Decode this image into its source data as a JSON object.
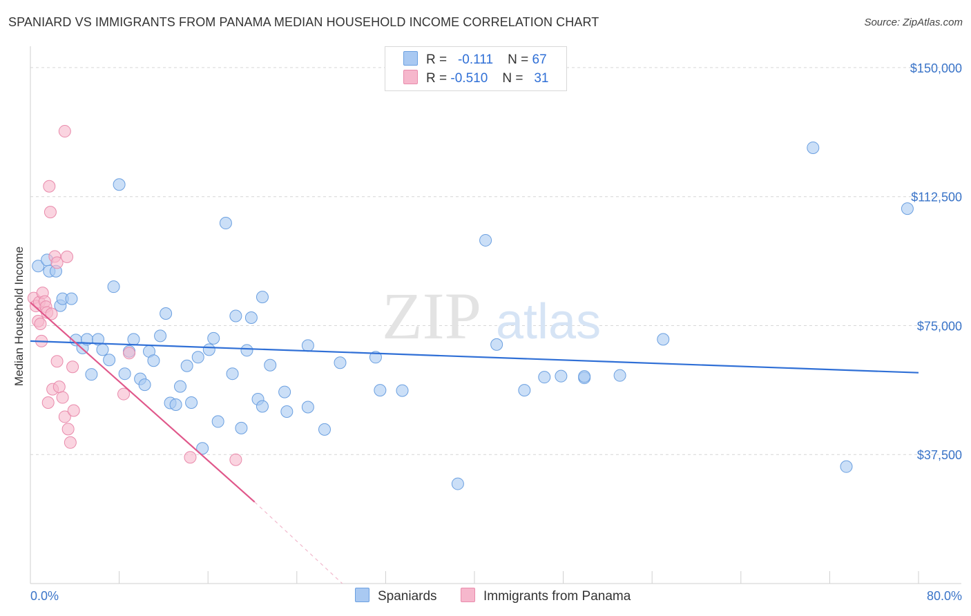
{
  "title": "SPANIARD VS IMMIGRANTS FROM PANAMA MEDIAN HOUSEHOLD INCOME CORRELATION CHART",
  "source": "Source: ZipAtlas.com",
  "watermark": {
    "zip": "ZIP",
    "atlas": "atlas"
  },
  "legend": {
    "r_label": "R =",
    "n_label": "N =",
    "rows": [
      {
        "r": "-0.111",
        "n": "67",
        "color": "#a9c9f2"
      },
      {
        "r": "-0.510",
        "n": "31",
        "color": "#f6b7cc"
      }
    ]
  },
  "bottom_legend": {
    "spaniards": "Spaniards",
    "panama": "Immigrants from Panama"
  },
  "colors": {
    "blue_fill": "#a9c9f2",
    "blue_stroke": "#6a9fe0",
    "blue_line": "#2f6fd6",
    "pink_fill": "#f6b7cc",
    "pink_stroke": "#e98aab",
    "pink_line": "#e0578a",
    "tick_text": "#3a74c8",
    "grid": "#d6d6d6"
  },
  "chart_data": {
    "type": "scatter",
    "title": "SPANIARD VS IMMIGRANTS FROM PANAMA MEDIAN HOUSEHOLD INCOME CORRELATION CHART",
    "xlabel": "",
    "ylabel": "Median Household Income",
    "xlim": [
      0,
      80
    ],
    "ylim": [
      0,
      154000
    ],
    "x_tick_labels": [
      "0.0%",
      "80.0%"
    ],
    "y_ticks": [
      37500,
      75000,
      112500,
      150000
    ],
    "y_tick_labels": [
      "$37,500",
      "$75,000",
      "$112,500",
      "$150,000"
    ],
    "series": [
      {
        "name": "Spaniards",
        "r": -0.111,
        "n": 67,
        "trend": {
          "x": [
            0,
            80
          ],
          "y": [
            70500,
            61300
          ]
        },
        "points": [
          [
            0.7,
            92300
          ],
          [
            1.5,
            94100
          ],
          [
            1.7,
            90800
          ],
          [
            2.3,
            90800
          ],
          [
            2.7,
            80800
          ],
          [
            2.9,
            82800
          ],
          [
            3.7,
            82800
          ],
          [
            4.1,
            70800
          ],
          [
            4.7,
            68500
          ],
          [
            5.1,
            71000
          ],
          [
            5.5,
            60800
          ],
          [
            6.1,
            71000
          ],
          [
            6.5,
            68000
          ],
          [
            7.1,
            65000
          ],
          [
            7.5,
            86300
          ],
          [
            8.0,
            116000
          ],
          [
            8.5,
            61000
          ],
          [
            8.9,
            67500
          ],
          [
            9.3,
            71000
          ],
          [
            9.9,
            59500
          ],
          [
            10.3,
            57800
          ],
          [
            10.7,
            67500
          ],
          [
            11.1,
            64800
          ],
          [
            11.7,
            72000
          ],
          [
            12.2,
            78500
          ],
          [
            12.6,
            52500
          ],
          [
            13.1,
            52000
          ],
          [
            13.5,
            57300
          ],
          [
            14.1,
            63300
          ],
          [
            14.5,
            52600
          ],
          [
            15.1,
            65800
          ],
          [
            15.5,
            39300
          ],
          [
            16.1,
            68000
          ],
          [
            16.5,
            71300
          ],
          [
            16.9,
            47100
          ],
          [
            17.6,
            104800
          ],
          [
            18.2,
            61000
          ],
          [
            18.5,
            77800
          ],
          [
            19.0,
            45200
          ],
          [
            19.5,
            67800
          ],
          [
            19.9,
            77300
          ],
          [
            20.5,
            53600
          ],
          [
            20.9,
            83300
          ],
          [
            20.9,
            51500
          ],
          [
            21.6,
            63500
          ],
          [
            22.9,
            55700
          ],
          [
            23.1,
            50000
          ],
          [
            25.0,
            51300
          ],
          [
            25.0,
            69200
          ],
          [
            26.5,
            44800
          ],
          [
            27.9,
            64200
          ],
          [
            31.1,
            65800
          ],
          [
            31.5,
            56200
          ],
          [
            33.5,
            56100
          ],
          [
            38.5,
            29000
          ],
          [
            41.0,
            99800
          ],
          [
            42.0,
            69500
          ],
          [
            44.5,
            56200
          ],
          [
            46.3,
            60000
          ],
          [
            47.8,
            60300
          ],
          [
            49.9,
            59800
          ],
          [
            49.9,
            60200
          ],
          [
            53.1,
            60500
          ],
          [
            57.0,
            71000
          ],
          [
            70.5,
            126700
          ],
          [
            73.5,
            34000
          ],
          [
            79.0,
            109000
          ]
        ]
      },
      {
        "name": "Immigrants from Panama",
        "r": -0.51,
        "n": 31,
        "trend": {
          "x": [
            0,
            20.2
          ],
          "y": [
            81700,
            23700
          ]
        },
        "trend_dashed": {
          "x": [
            20.2,
            28.1
          ],
          "y": [
            23700,
            0
          ]
        },
        "points": [
          [
            0.3,
            83000
          ],
          [
            0.5,
            80700
          ],
          [
            0.7,
            76300
          ],
          [
            0.8,
            81800
          ],
          [
            0.9,
            75500
          ],
          [
            1.0,
            70500
          ],
          [
            1.1,
            84500
          ],
          [
            1.3,
            82000
          ],
          [
            1.4,
            80500
          ],
          [
            1.5,
            78800
          ],
          [
            1.6,
            52600
          ],
          [
            1.7,
            115500
          ],
          [
            1.8,
            108000
          ],
          [
            1.9,
            78400
          ],
          [
            2.0,
            56500
          ],
          [
            2.2,
            95100
          ],
          [
            2.4,
            93300
          ],
          [
            2.4,
            64600
          ],
          [
            2.6,
            57200
          ],
          [
            2.9,
            54100
          ],
          [
            3.1,
            131500
          ],
          [
            3.1,
            48500
          ],
          [
            3.3,
            95000
          ],
          [
            3.4,
            44900
          ],
          [
            3.6,
            41000
          ],
          [
            3.8,
            63000
          ],
          [
            3.9,
            50300
          ],
          [
            8.4,
            55100
          ],
          [
            8.9,
            67000
          ],
          [
            14.4,
            36700
          ],
          [
            18.5,
            36000
          ]
        ]
      }
    ]
  }
}
